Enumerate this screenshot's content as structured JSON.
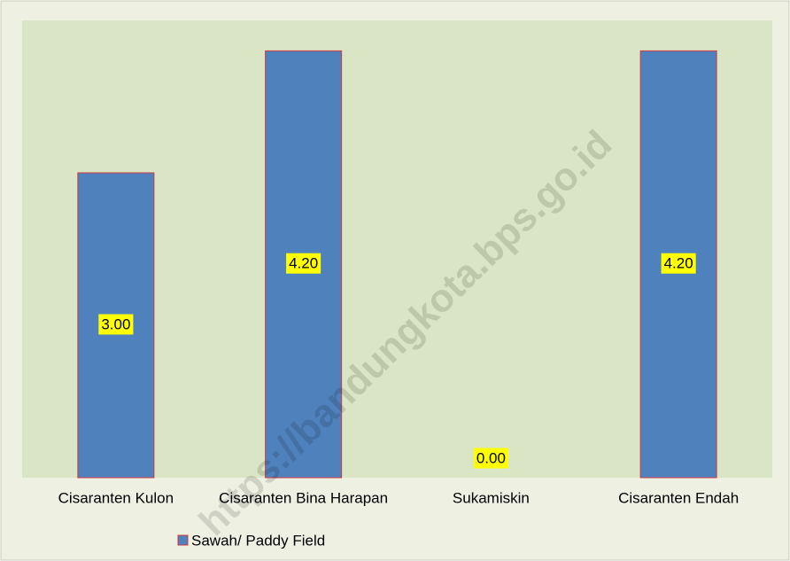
{
  "chart_data": {
    "type": "bar",
    "categories": [
      "Cisaranten Kulon",
      "Cisaranten Bina Harapan",
      "Sukamiskin",
      "Cisaranten Endah"
    ],
    "series": [
      {
        "name": "Sawah/ Paddy Field",
        "color": "#4f81bd",
        "values": [
          3,
          4.2,
          0,
          4.2
        ],
        "value_labels": [
          "3.00",
          "4.20",
          "0.00",
          "4.20"
        ]
      }
    ],
    "ylim": [
      0,
      4.5
    ],
    "legend": "bottom",
    "watermark": "https://bandungkota.bps.go.id"
  }
}
